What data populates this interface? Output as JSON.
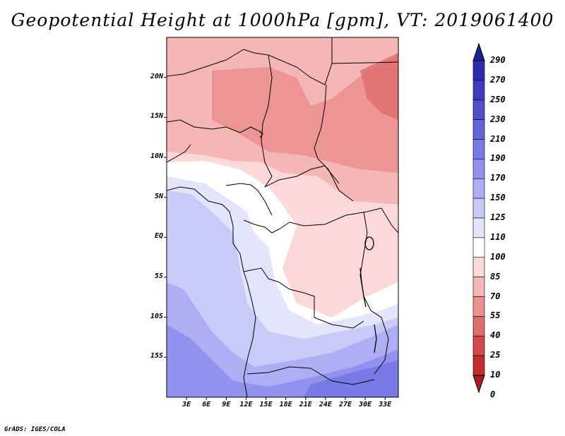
{
  "title": "Geopotential Height at 1000hPa [gpm], VT: 2019061400",
  "lat_labels": [
    "20N",
    "15N",
    "10N",
    "5N",
    "EQ",
    "5S",
    "10S",
    "15S"
  ],
  "lat_values": [
    20,
    15,
    10,
    5,
    0,
    -5,
    -10,
    -15
  ],
  "lon_labels": [
    "3E",
    "6E",
    "9E",
    "12E",
    "15E",
    "18E",
    "21E",
    "24E",
    "27E",
    "30E",
    "33E"
  ],
  "lon_values": [
    3,
    6,
    9,
    12,
    15,
    18,
    21,
    24,
    27,
    30,
    33
  ],
  "map_extent": {
    "lon_min": 0,
    "lon_max": 35,
    "lat_min": -20,
    "lat_max": 25
  },
  "colorbar": {
    "labels": [
      "290",
      "270",
      "250",
      "230",
      "210",
      "190",
      "170",
      "150",
      "125",
      "110",
      "100",
      "85",
      "70",
      "55",
      "40",
      "25",
      "10",
      "0"
    ],
    "colors": [
      "#1e1e96",
      "#2c2cad",
      "#3c3cc0",
      "#5050cf",
      "#6464dc",
      "#7a7ae6",
      "#9292ee",
      "#aeaef4",
      "#cacaf9",
      "#e4e4fc",
      "#ffffff",
      "#fcd8d8",
      "#f5b6b6",
      "#ec9090",
      "#e06c6c",
      "#d44a4a",
      "#c42c2c",
      "#aa1e1e"
    ]
  },
  "credit": "GrADS: IGES/COLA"
}
